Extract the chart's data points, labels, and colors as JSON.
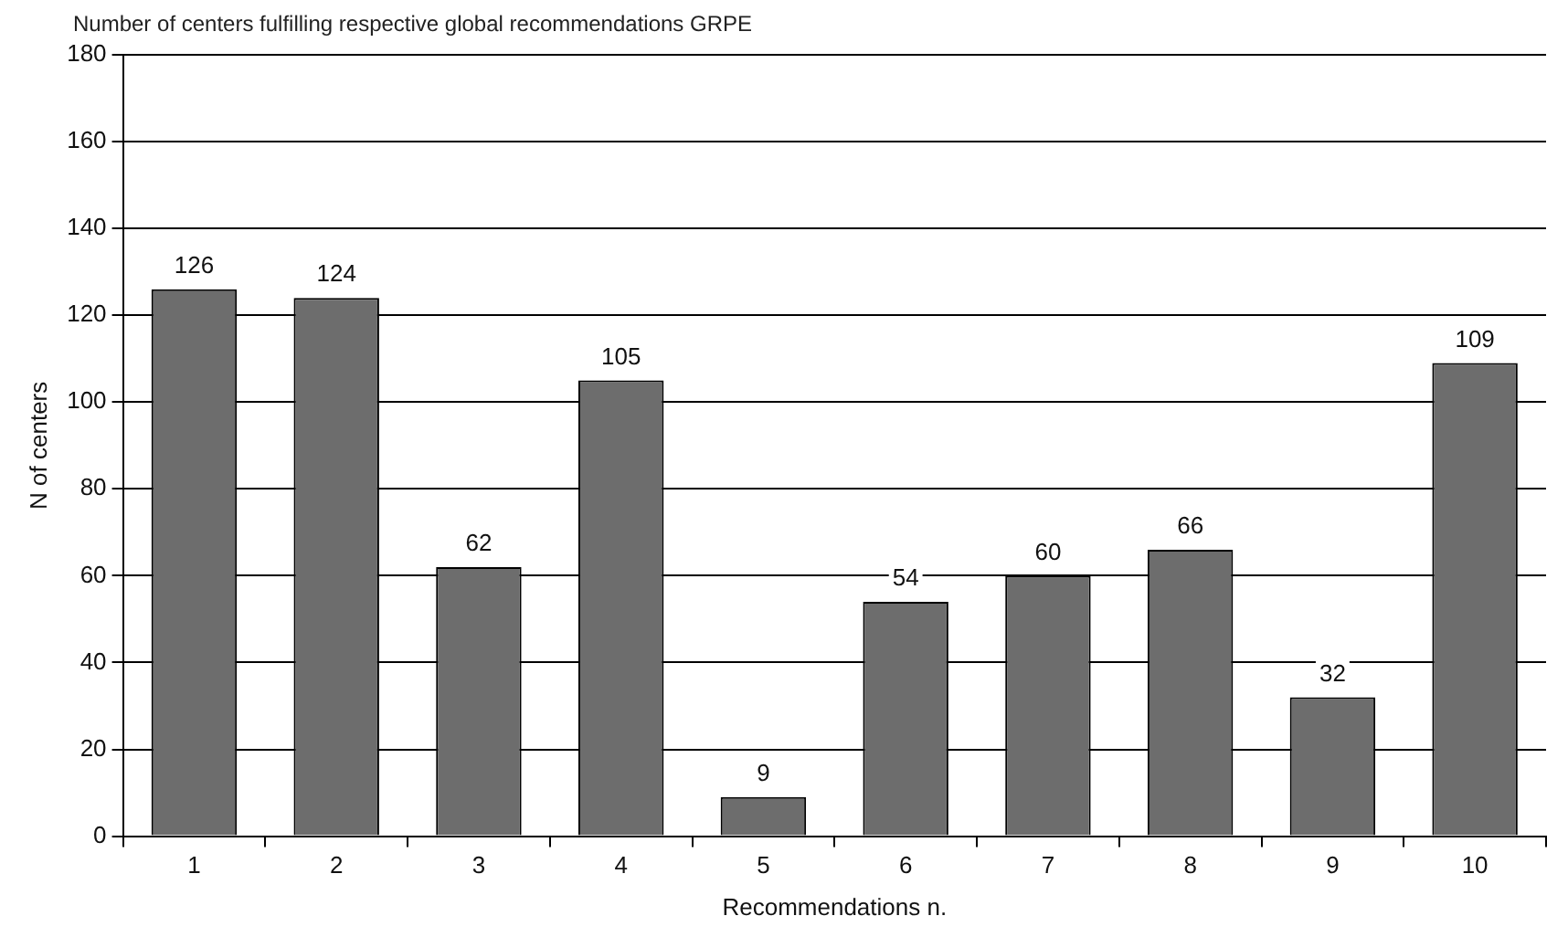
{
  "chart_data": {
    "type": "bar",
    "title": "Number of centers fulfilling respective global recommendations GRPE",
    "xlabel": "Recommendations n.",
    "ylabel": "N of centers",
    "categories": [
      "1",
      "2",
      "3",
      "4",
      "5",
      "6",
      "7",
      "8",
      "9",
      "10"
    ],
    "values": [
      126,
      124,
      62,
      105,
      9,
      54,
      60,
      66,
      32,
      109
    ],
    "color": "#6d6d6d",
    "ylim": [
      0,
      180
    ],
    "yticks": [
      0,
      20,
      40,
      60,
      80,
      100,
      120,
      140,
      160,
      180
    ],
    "grid": "y",
    "data_labels": true,
    "legend": false
  }
}
